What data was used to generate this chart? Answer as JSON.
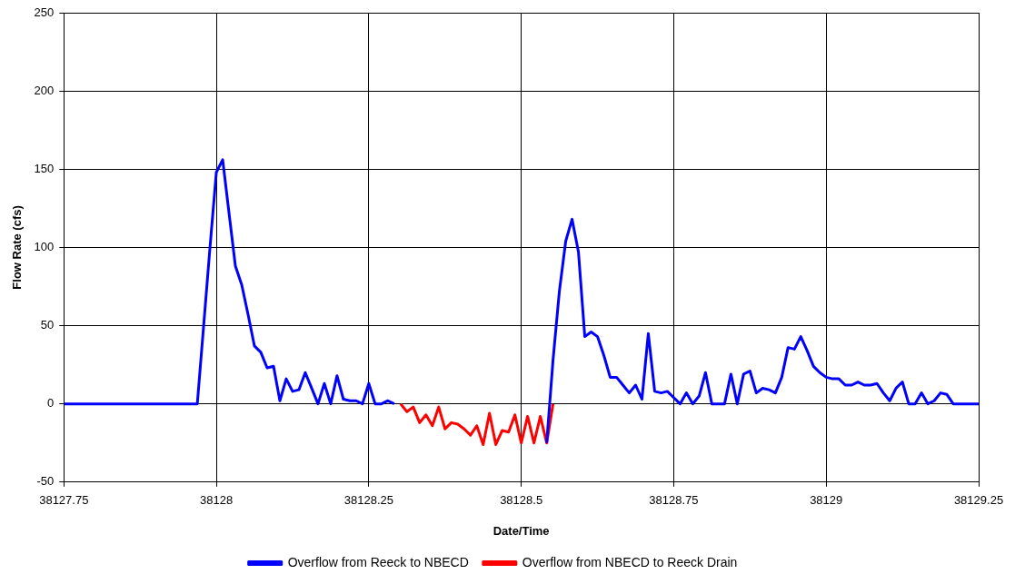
{
  "chart_data": {
    "type": "line",
    "xlabel": "Date/Time",
    "ylabel": "Flow Rate (cfs)",
    "xlim": [
      38127.75,
      38129.25
    ],
    "xticks": [
      38127.75,
      38128,
      38128.25,
      38128.5,
      38128.75,
      38129,
      38129.25
    ],
    "ylim": [
      -50,
      250
    ],
    "yticks": [
      -50,
      0,
      50,
      100,
      150,
      200,
      250
    ],
    "grid": true,
    "legend": "bottom",
    "marker": "none",
    "line_style": "solid",
    "series": [
      {
        "name": "Overflow from Reeck to NBECD",
        "color": "#0000ff",
        "x": [
          38127.75,
          38127.7604,
          38127.7708,
          38127.7813,
          38127.7917,
          38127.8021,
          38127.8125,
          38127.8229,
          38127.8333,
          38127.8438,
          38127.8542,
          38127.8646,
          38127.875,
          38127.8854,
          38127.8958,
          38127.9063,
          38127.9167,
          38127.9271,
          38127.9375,
          38127.9479,
          38127.9583,
          38127.9688,
          38127.9792,
          38127.9896,
          38128,
          38128.0104,
          38128.0208,
          38128.0313,
          38128.0417,
          38128.0521,
          38128.0625,
          38128.0729,
          38128.0833,
          38128.0938,
          38128.1042,
          38128.1146,
          38128.125,
          38128.1354,
          38128.1458,
          38128.1563,
          38128.1667,
          38128.1771,
          38128.1875,
          38128.1979,
          38128.2083,
          38128.2188,
          38128.2292,
          38128.2396,
          38128.25,
          38128.2604,
          38128.2708,
          38128.2813,
          38128.2917,
          38128.3021,
          38128.3125,
          38128.3229,
          38128.3333,
          38128.3438,
          38128.3542,
          38128.3646,
          38128.375,
          38128.3854,
          38128.3958,
          38128.4063,
          38128.4167,
          38128.4271,
          38128.4375,
          38128.4479,
          38128.4583,
          38128.4688,
          38128.4792,
          38128.4896,
          38128.5,
          38128.5104,
          38128.5208,
          38128.5313,
          38128.5417,
          38128.5521,
          38128.5625,
          38128.5729,
          38128.5833,
          38128.5938,
          38128.6042,
          38128.6146,
          38128.625,
          38128.6354,
          38128.6458,
          38128.6563,
          38128.6667,
          38128.6771,
          38128.6875,
          38128.6979,
          38128.7083,
          38128.7188,
          38128.7292,
          38128.7396,
          38128.75,
          38128.7604,
          38128.7708,
          38128.7813,
          38128.7917,
          38128.8021,
          38128.8125,
          38128.8229,
          38128.8333,
          38128.8438,
          38128.8542,
          38128.8646,
          38128.875,
          38128.8854,
          38128.8958,
          38128.9063,
          38128.9167,
          38128.9271,
          38128.9375,
          38128.9479,
          38128.9583,
          38128.9688,
          38128.9792,
          38128.9896,
          38129,
          38129.0104,
          38129.0208,
          38129.0313,
          38129.0417,
          38129.0521,
          38129.0625,
          38129.0729,
          38129.0833,
          38129.0938,
          38129.1042,
          38129.1146,
          38129.125,
          38129.1354,
          38129.1458,
          38129.1563,
          38129.1667,
          38129.1771,
          38129.1875,
          38129.1979,
          38129.2083,
          38129.2188,
          38129.2292,
          38129.2396,
          38129.25
        ],
        "values": [
          0,
          0,
          0,
          0,
          0,
          0,
          0,
          0,
          0,
          0,
          0,
          0,
          0,
          0,
          0,
          0,
          0,
          0,
          0,
          0,
          0,
          0,
          50,
          100,
          148,
          156,
          122,
          88,
          76,
          57,
          37,
          33,
          23,
          24,
          2,
          16,
          8,
          9,
          20,
          10,
          0,
          13,
          0,
          18,
          3,
          2,
          2,
          0,
          13,
          0,
          0,
          2,
          0,
          null,
          null,
          null,
          null,
          null,
          null,
          null,
          null,
          null,
          null,
          null,
          null,
          null,
          null,
          null,
          null,
          null,
          null,
          null,
          null,
          null,
          null,
          null,
          -25,
          28,
          72,
          104,
          118,
          97,
          43,
          46,
          43,
          31,
          17,
          17,
          12,
          7,
          12,
          3,
          45,
          8,
          7,
          8,
          4,
          0,
          7,
          0,
          5,
          20,
          0,
          0,
          0,
          19,
          0,
          19,
          21,
          7,
          10,
          9,
          7,
          17,
          36,
          35,
          43,
          34,
          24,
          20,
          17,
          16,
          16,
          12,
          12,
          14,
          12,
          12,
          13,
          7,
          2,
          10,
          14,
          0,
          0,
          7,
          0,
          2,
          7,
          6,
          0,
          0,
          0,
          0,
          0
        ]
      },
      {
        "name": "Overflow from NBECD to Reeck Drain",
        "color": "#ff0000",
        "x": [
          38128.3021,
          38128.3125,
          38128.3229,
          38128.3333,
          38128.3438,
          38128.3542,
          38128.3646,
          38128.375,
          38128.3854,
          38128.3958,
          38128.4063,
          38128.4167,
          38128.4271,
          38128.4375,
          38128.4479,
          38128.4583,
          38128.4688,
          38128.4792,
          38128.4896,
          38128.5,
          38128.5104,
          38128.5208,
          38128.5313,
          38128.5417,
          38128.5521
        ],
        "values": [
          0,
          -5,
          -2,
          -12,
          -7,
          -14,
          -2,
          -16,
          -12,
          -13,
          -16,
          -20,
          -14,
          -26,
          -6,
          -26,
          -17,
          -18,
          -7,
          -25,
          -8,
          -25,
          -8,
          -25,
          0
        ]
      }
    ]
  }
}
